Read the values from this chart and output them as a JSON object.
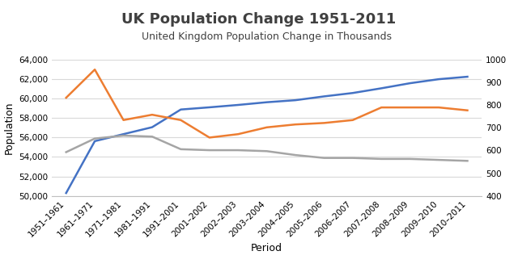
{
  "title": "UK Population Change 1951-2011",
  "subtitle": "United Kingdom Population Change in Thousands",
  "xlabel": "Period",
  "ylabel": "Population",
  "categories": [
    "1951–1961",
    "1961–1971",
    "1971–1981",
    "1981–1991",
    "1991–2001",
    "2001–2002",
    "2002–2003",
    "2003–2004",
    "2004–2005",
    "2005–2006",
    "2006–2007",
    "2007–2008",
    "2008–2009",
    "2009–2010",
    "2010–2011"
  ],
  "blue_line": [
    50290,
    55630,
    56352,
    57065,
    58886,
    59113,
    59358,
    59636,
    59846,
    60238,
    60587,
    61073,
    61595,
    62008,
    62262
  ],
  "orange_line": [
    60100,
    63000,
    57800,
    58350,
    57800,
    56000,
    56350,
    57050,
    57350,
    57500,
    57800,
    59100,
    59100,
    59100,
    58800
  ],
  "gray_line": [
    54500,
    55900,
    56200,
    56100,
    54800,
    54700,
    54700,
    54600,
    54200,
    53900,
    53900,
    53800,
    53800,
    53700,
    53600
  ],
  "blue_color": "#4472C4",
  "orange_color": "#ED7D31",
  "gray_color": "#A5A5A5",
  "ylim_left": [
    50000,
    64000
  ],
  "ylim_right": [
    400,
    1000
  ],
  "yticks_left": [
    50000,
    52000,
    54000,
    56000,
    58000,
    60000,
    62000,
    64000
  ],
  "yticks_right": [
    400,
    500,
    600,
    700,
    800,
    900,
    1000
  ],
  "bg_color": "#FFFFFF",
  "title_fontsize": 13,
  "subtitle_fontsize": 9,
  "axis_label_fontsize": 9,
  "tick_fontsize": 7.5
}
